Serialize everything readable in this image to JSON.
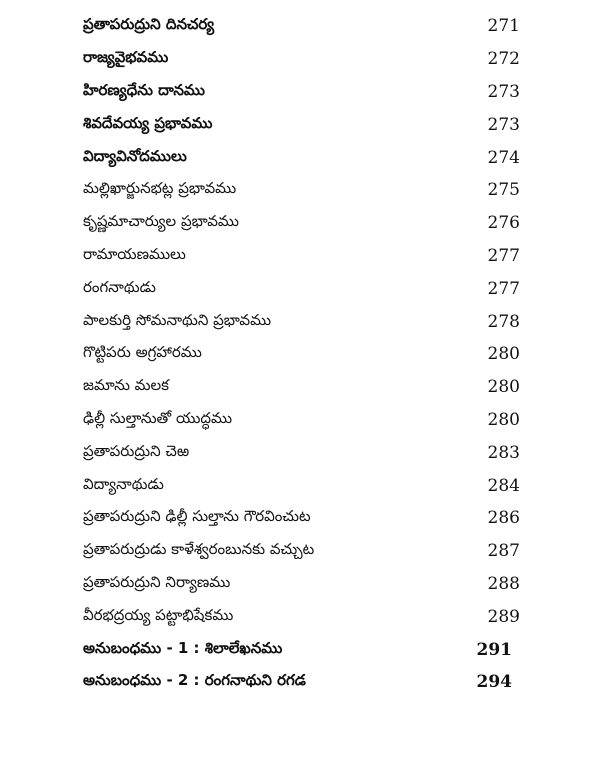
{
  "toc": {
    "items": [
      {
        "title": "ప్రతాపరుద్రుని దినచర్య",
        "page": "271"
      },
      {
        "title": "రాజ్యవైభవము",
        "page": "272"
      },
      {
        "title": "హిరణ్యధేను దానము",
        "page": "273"
      },
      {
        "title": "శివదేవయ్య ప్రభావము",
        "page": "273"
      },
      {
        "title": "విద్యావినోదములు",
        "page": "274"
      },
      {
        "title": "మల్లిఖార్జునభట్ల ప్రభావము",
        "page": "275"
      },
      {
        "title": "కృష్ణమాచార్యుల ప్రభావము",
        "page": "276"
      },
      {
        "title": "రామాయణములు",
        "page": "277"
      },
      {
        "title": "రంగనాథుడు",
        "page": "277"
      },
      {
        "title": "పాలకుర్తి సోమనాథుని ప్రభావము",
        "page": "278"
      },
      {
        "title": "గొట్టిపరు అగ్రహారము",
        "page": "280"
      },
      {
        "title": "జమాను మలక",
        "page": "280"
      },
      {
        "title": "ఢిల్లీ సుల్తానుతో యుద్ధము",
        "page": "280"
      },
      {
        "title": "ప్రతాపరుద్రుని చెఱ",
        "page": "283"
      },
      {
        "title": "విద్యానాథుడు",
        "page": "284"
      },
      {
        "title": "ప్రతాపరుద్రుని ఢిల్లీ సుల్తాను గౌరవించుట",
        "page": "286"
      },
      {
        "title": "ప్రతాపరుద్రుడు కాళేశ్వరంబునకు వచ్చుట",
        "page": "287"
      },
      {
        "title": "ప్రతాపరుద్రుని నిర్యాణము",
        "page": "288"
      },
      {
        "title": "వీరభద్రయ్య పట్టాభిషేకము",
        "page": "289"
      },
      {
        "title": "అనుబంధము - 1 : శిలాలేఖనము",
        "page": "291"
      },
      {
        "title": "అనుబంధము - 2 : రంగనాథుని రగడ",
        "page": "294"
      }
    ]
  }
}
